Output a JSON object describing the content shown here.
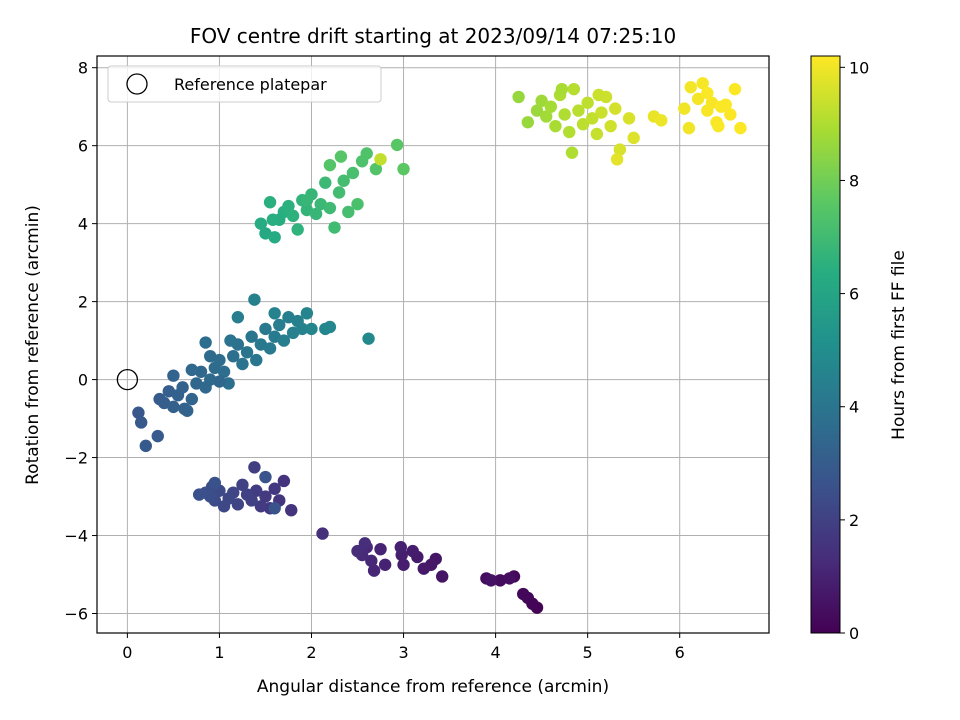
{
  "chart_data": {
    "type": "scatter",
    "title": "FOV centre drift starting at 2023/09/14 07:25:10",
    "xlabel": "Angular distance from reference (arcmin)",
    "ylabel": "Rotation from reference (arcmin)",
    "xlim": [
      -0.33,
      6.97
    ],
    "ylim": [
      -6.5,
      8.3
    ],
    "xticks": [
      0,
      1,
      2,
      3,
      4,
      5,
      6
    ],
    "yticks": [
      -6,
      -4,
      -2,
      0,
      2,
      4,
      6,
      8
    ],
    "grid": true,
    "legend": {
      "placement": "top-left",
      "entries": [
        {
          "label": "Reference platepar",
          "marker": "hollow-circle"
        }
      ]
    },
    "reference_point": {
      "x": 0,
      "y": 0
    },
    "colorbar": {
      "label": "Hours from first FF file",
      "colormap": "viridis",
      "range": [
        0,
        10.2
      ],
      "ticks": [
        0,
        2,
        4,
        6,
        8,
        10
      ]
    },
    "points": [
      {
        "x": 4.45,
        "y": -5.85,
        "h": 0.05
      },
      {
        "x": 4.4,
        "y": -5.75,
        "h": 0.1
      },
      {
        "x": 4.35,
        "y": -5.6,
        "h": 0.15
      },
      {
        "x": 4.3,
        "y": -5.5,
        "h": 0.2
      },
      {
        "x": 4.2,
        "y": -5.05,
        "h": 0.25
      },
      {
        "x": 4.05,
        "y": -5.15,
        "h": 0.3
      },
      {
        "x": 3.9,
        "y": -5.1,
        "h": 0.35
      },
      {
        "x": 4.15,
        "y": -5.1,
        "h": 0.4
      },
      {
        "x": 3.95,
        "y": -5.15,
        "h": 0.5
      },
      {
        "x": 3.42,
        "y": -5.05,
        "h": 0.55
      },
      {
        "x": 3.35,
        "y": -4.6,
        "h": 0.6
      },
      {
        "x": 3.3,
        "y": -4.75,
        "h": 0.65
      },
      {
        "x": 3.22,
        "y": -4.85,
        "h": 0.7
      },
      {
        "x": 3.15,
        "y": -4.55,
        "h": 0.75
      },
      {
        "x": 3.1,
        "y": -4.4,
        "h": 0.8
      },
      {
        "x": 3.0,
        "y": -4.75,
        "h": 0.85
      },
      {
        "x": 2.98,
        "y": -4.5,
        "h": 0.9
      },
      {
        "x": 2.97,
        "y": -4.3,
        "h": 0.95
      },
      {
        "x": 2.8,
        "y": -4.75,
        "h": 1.0
      },
      {
        "x": 2.75,
        "y": -4.35,
        "h": 1.05
      },
      {
        "x": 2.68,
        "y": -4.9,
        "h": 1.1
      },
      {
        "x": 2.65,
        "y": -4.65,
        "h": 1.15
      },
      {
        "x": 2.6,
        "y": -4.3,
        "h": 1.2
      },
      {
        "x": 2.55,
        "y": -4.5,
        "h": 1.25
      },
      {
        "x": 2.5,
        "y": -4.4,
        "h": 1.3
      },
      {
        "x": 2.58,
        "y": -4.2,
        "h": 1.35
      },
      {
        "x": 2.12,
        "y": -3.95,
        "h": 1.4
      },
      {
        "x": 1.7,
        "y": -2.6,
        "h": 1.5
      },
      {
        "x": 1.78,
        "y": -3.35,
        "h": 1.55
      },
      {
        "x": 1.65,
        "y": -3.1,
        "h": 1.6
      },
      {
        "x": 1.6,
        "y": -2.8,
        "h": 1.65
      },
      {
        "x": 1.55,
        "y": -3.3,
        "h": 1.7
      },
      {
        "x": 1.5,
        "y": -3.0,
        "h": 1.75
      },
      {
        "x": 1.45,
        "y": -3.25,
        "h": 1.8
      },
      {
        "x": 1.4,
        "y": -2.85,
        "h": 1.85
      },
      {
        "x": 1.38,
        "y": -2.25,
        "h": 1.9
      },
      {
        "x": 1.35,
        "y": -3.1,
        "h": 1.95
      },
      {
        "x": 1.3,
        "y": -2.95,
        "h": 2.0
      },
      {
        "x": 1.25,
        "y": -2.7,
        "h": 2.05
      },
      {
        "x": 1.2,
        "y": -3.2,
        "h": 2.1
      },
      {
        "x": 1.15,
        "y": -2.9,
        "h": 2.15
      },
      {
        "x": 1.1,
        "y": -3.05,
        "h": 2.2
      },
      {
        "x": 1.05,
        "y": -3.25,
        "h": 2.25
      },
      {
        "x": 1.0,
        "y": -2.85,
        "h": 2.3
      },
      {
        "x": 0.95,
        "y": -3.1,
        "h": 2.35
      },
      {
        "x": 0.92,
        "y": -2.75,
        "h": 2.4
      },
      {
        "x": 0.9,
        "y": -3.0,
        "h": 2.45
      },
      {
        "x": 0.85,
        "y": -2.9,
        "h": 2.5
      },
      {
        "x": 0.78,
        "y": -2.95,
        "h": 2.55
      },
      {
        "x": 0.95,
        "y": -2.65,
        "h": 2.6
      },
      {
        "x": 1.6,
        "y": -3.3,
        "h": 2.65
      },
      {
        "x": 1.5,
        "y": -2.5,
        "h": 2.7
      },
      {
        "x": 0.12,
        "y": -0.85,
        "h": 2.8
      },
      {
        "x": 0.15,
        "y": -1.1,
        "h": 2.85
      },
      {
        "x": 0.2,
        "y": -1.7,
        "h": 2.9
      },
      {
        "x": 0.33,
        "y": -1.45,
        "h": 2.95
      },
      {
        "x": 0.35,
        "y": -0.5,
        "h": 3.0
      },
      {
        "x": 0.4,
        "y": -0.6,
        "h": 3.05
      },
      {
        "x": 0.45,
        "y": -0.3,
        "h": 3.1
      },
      {
        "x": 0.5,
        "y": -0.7,
        "h": 3.15
      },
      {
        "x": 0.55,
        "y": -0.4,
        "h": 3.2
      },
      {
        "x": 0.6,
        "y": -0.2,
        "h": 3.25
      },
      {
        "x": 0.65,
        "y": -0.8,
        "h": 3.3
      },
      {
        "x": 0.7,
        "y": -0.5,
        "h": 3.35
      },
      {
        "x": 0.75,
        "y": -0.1,
        "h": 3.4
      },
      {
        "x": 0.8,
        "y": 0.2,
        "h": 3.45
      },
      {
        "x": 0.85,
        "y": -0.2,
        "h": 3.5
      },
      {
        "x": 0.9,
        "y": 0.0,
        "h": 3.55
      },
      {
        "x": 0.95,
        "y": 0.3,
        "h": 3.6
      },
      {
        "x": 1.0,
        "y": 0.5,
        "h": 3.65
      },
      {
        "x": 1.05,
        "y": 0.2,
        "h": 3.7
      },
      {
        "x": 1.1,
        "y": -0.1,
        "h": 3.75
      },
      {
        "x": 1.15,
        "y": 0.6,
        "h": 3.8
      },
      {
        "x": 1.2,
        "y": 0.9,
        "h": 3.85
      },
      {
        "x": 1.25,
        "y": 0.4,
        "h": 3.9
      },
      {
        "x": 1.3,
        "y": 0.7,
        "h": 3.95
      },
      {
        "x": 1.35,
        "y": 1.1,
        "h": 4.0
      },
      {
        "x": 1.4,
        "y": 0.5,
        "h": 4.05
      },
      {
        "x": 1.45,
        "y": 0.9,
        "h": 4.1
      },
      {
        "x": 1.5,
        "y": 1.3,
        "h": 4.15
      },
      {
        "x": 1.55,
        "y": 0.8,
        "h": 4.2
      },
      {
        "x": 1.6,
        "y": 1.1,
        "h": 4.25
      },
      {
        "x": 1.65,
        "y": 1.4,
        "h": 4.3
      },
      {
        "x": 1.7,
        "y": 1.0,
        "h": 4.35
      },
      {
        "x": 1.75,
        "y": 1.6,
        "h": 4.4
      },
      {
        "x": 1.8,
        "y": 1.2,
        "h": 4.45
      },
      {
        "x": 1.85,
        "y": 1.5,
        "h": 4.5
      },
      {
        "x": 1.9,
        "y": 1.3,
        "h": 4.55
      },
      {
        "x": 1.95,
        "y": 1.7,
        "h": 4.6
      },
      {
        "x": 2.0,
        "y": 1.3,
        "h": 4.65
      },
      {
        "x": 2.15,
        "y": 1.3,
        "h": 4.7
      },
      {
        "x": 2.2,
        "y": 1.35,
        "h": 4.75
      },
      {
        "x": 2.62,
        "y": 1.05,
        "h": 4.8
      },
      {
        "x": 1.38,
        "y": 2.05,
        "h": 4.5
      },
      {
        "x": 1.6,
        "y": 1.7,
        "h": 4.55
      },
      {
        "x": 1.2,
        "y": 1.6,
        "h": 4.3
      },
      {
        "x": 0.5,
        "y": 0.1,
        "h": 3.3
      },
      {
        "x": 0.7,
        "y": 0.25,
        "h": 3.5
      },
      {
        "x": 0.9,
        "y": 0.6,
        "h": 3.6
      },
      {
        "x": 1.0,
        "y": -0.05,
        "h": 3.4
      },
      {
        "x": 1.12,
        "y": 1.0,
        "h": 3.9
      },
      {
        "x": 0.62,
        "y": -0.75,
        "h": 3.25
      },
      {
        "x": 0.85,
        "y": 0.95,
        "h": 3.7
      },
      {
        "x": 1.5,
        "y": 3.75,
        "h": 6.2
      },
      {
        "x": 1.6,
        "y": 3.65,
        "h": 6.3
      },
      {
        "x": 1.65,
        "y": 4.1,
        "h": 6.35
      },
      {
        "x": 1.7,
        "y": 4.3,
        "h": 6.4
      },
      {
        "x": 1.55,
        "y": 4.55,
        "h": 6.45
      },
      {
        "x": 1.75,
        "y": 4.45,
        "h": 6.5
      },
      {
        "x": 1.8,
        "y": 4.2,
        "h": 6.55
      },
      {
        "x": 1.85,
        "y": 3.85,
        "h": 6.6
      },
      {
        "x": 1.9,
        "y": 4.6,
        "h": 6.65
      },
      {
        "x": 1.95,
        "y": 4.35,
        "h": 6.7
      },
      {
        "x": 2.0,
        "y": 4.75,
        "h": 6.75
      },
      {
        "x": 2.05,
        "y": 4.25,
        "h": 6.8
      },
      {
        "x": 2.1,
        "y": 4.5,
        "h": 6.85
      },
      {
        "x": 2.15,
        "y": 5.05,
        "h": 6.9
      },
      {
        "x": 2.2,
        "y": 4.4,
        "h": 6.95
      },
      {
        "x": 2.25,
        "y": 3.9,
        "h": 7.0
      },
      {
        "x": 2.3,
        "y": 4.8,
        "h": 7.05
      },
      {
        "x": 2.35,
        "y": 5.1,
        "h": 7.1
      },
      {
        "x": 2.4,
        "y": 4.3,
        "h": 7.15
      },
      {
        "x": 2.45,
        "y": 5.3,
        "h": 7.2
      },
      {
        "x": 2.5,
        "y": 4.5,
        "h": 7.25
      },
      {
        "x": 2.55,
        "y": 5.6,
        "h": 7.3
      },
      {
        "x": 2.6,
        "y": 5.8,
        "h": 7.35
      },
      {
        "x": 2.7,
        "y": 5.4,
        "h": 7.4
      },
      {
        "x": 2.2,
        "y": 5.5,
        "h": 7.45
      },
      {
        "x": 2.32,
        "y": 5.72,
        "h": 7.5
      },
      {
        "x": 2.93,
        "y": 6.02,
        "h": 7.55
      },
      {
        "x": 3.0,
        "y": 5.4,
        "h": 7.6
      },
      {
        "x": 2.75,
        "y": 5.65,
        "h": 9.3
      },
      {
        "x": 1.45,
        "y": 4.0,
        "h": 6.3
      },
      {
        "x": 1.95,
        "y": 4.6,
        "h": 6.8
      },
      {
        "x": 1.58,
        "y": 4.1,
        "h": 6.4
      },
      {
        "x": 4.25,
        "y": 7.25,
        "h": 8.6
      },
      {
        "x": 4.35,
        "y": 6.6,
        "h": 8.65
      },
      {
        "x": 4.45,
        "y": 6.9,
        "h": 8.7
      },
      {
        "x": 4.5,
        "y": 7.15,
        "h": 8.75
      },
      {
        "x": 4.55,
        "y": 6.75,
        "h": 8.8
      },
      {
        "x": 4.6,
        "y": 7.0,
        "h": 8.85
      },
      {
        "x": 4.65,
        "y": 6.5,
        "h": 8.9
      },
      {
        "x": 4.7,
        "y": 7.3,
        "h": 8.95
      },
      {
        "x": 4.75,
        "y": 6.8,
        "h": 9.0
      },
      {
        "x": 4.8,
        "y": 6.35,
        "h": 9.05
      },
      {
        "x": 4.85,
        "y": 7.45,
        "h": 9.1
      },
      {
        "x": 4.9,
        "y": 6.9,
        "h": 9.15
      },
      {
        "x": 4.95,
        "y": 6.55,
        "h": 9.2
      },
      {
        "x": 5.0,
        "y": 7.1,
        "h": 9.25
      },
      {
        "x": 5.05,
        "y": 6.7,
        "h": 9.3
      },
      {
        "x": 5.1,
        "y": 6.3,
        "h": 9.35
      },
      {
        "x": 5.15,
        "y": 6.85,
        "h": 9.4
      },
      {
        "x": 5.2,
        "y": 7.25,
        "h": 9.45
      },
      {
        "x": 5.25,
        "y": 6.5,
        "h": 9.5
      },
      {
        "x": 5.3,
        "y": 6.95,
        "h": 9.55
      },
      {
        "x": 5.35,
        "y": 5.9,
        "h": 9.6
      },
      {
        "x": 5.45,
        "y": 6.7,
        "h": 9.65
      },
      {
        "x": 5.5,
        "y": 6.2,
        "h": 9.7
      },
      {
        "x": 4.83,
        "y": 5.82,
        "h": 9.0
      },
      {
        "x": 5.32,
        "y": 5.65,
        "h": 9.8
      },
      {
        "x": 4.72,
        "y": 7.45,
        "h": 8.9
      },
      {
        "x": 5.12,
        "y": 7.3,
        "h": 9.4
      },
      {
        "x": 5.72,
        "y": 6.75,
        "h": 9.9
      },
      {
        "x": 5.8,
        "y": 6.65,
        "h": 9.95
      },
      {
        "x": 6.05,
        "y": 6.95,
        "h": 10.0
      },
      {
        "x": 6.1,
        "y": 6.45,
        "h": 10.02
      },
      {
        "x": 6.12,
        "y": 7.5,
        "h": 10.04
      },
      {
        "x": 6.2,
        "y": 7.2,
        "h": 10.06
      },
      {
        "x": 6.25,
        "y": 7.6,
        "h": 10.08
      },
      {
        "x": 6.3,
        "y": 6.9,
        "h": 10.1
      },
      {
        "x": 6.35,
        "y": 7.1,
        "h": 10.12
      },
      {
        "x": 6.4,
        "y": 6.6,
        "h": 10.14
      },
      {
        "x": 6.45,
        "y": 7.0,
        "h": 10.15
      },
      {
        "x": 6.5,
        "y": 7.05,
        "h": 10.16
      },
      {
        "x": 6.55,
        "y": 6.8,
        "h": 10.17
      },
      {
        "x": 6.6,
        "y": 7.45,
        "h": 10.18
      },
      {
        "x": 6.66,
        "y": 6.45,
        "h": 10.19
      },
      {
        "x": 6.3,
        "y": 7.35,
        "h": 10.15
      },
      {
        "x": 6.42,
        "y": 6.5,
        "h": 10.16
      }
    ]
  }
}
